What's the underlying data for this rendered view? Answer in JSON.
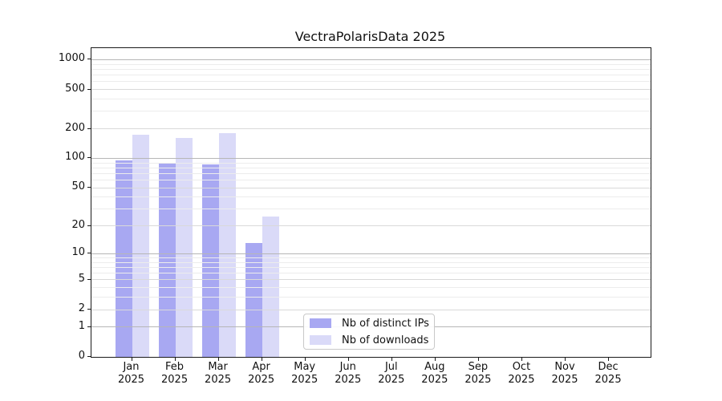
{
  "chart_data": {
    "type": "bar",
    "title": "VectraPolarisData 2025",
    "categories": [
      "Jan",
      "Feb",
      "Mar",
      "Apr",
      "May",
      "Jun",
      "Jul",
      "Aug",
      "Sep",
      "Oct",
      "Nov",
      "Dec"
    ],
    "year_suffix": "2025",
    "series": [
      {
        "name": "Nb of distinct IPs",
        "color": "#a8a8f2",
        "values": [
          95,
          90,
          86,
          13,
          0,
          0,
          0,
          0,
          0,
          0,
          0,
          0
        ]
      },
      {
        "name": "Nb of downloads",
        "color": "#dadaf8",
        "values": [
          173,
          160,
          182,
          25,
          0,
          0,
          0,
          0,
          0,
          0,
          0,
          0
        ]
      }
    ],
    "yscale": "log10(v+1)",
    "yticks": [
      0,
      1,
      2,
      5,
      10,
      20,
      50,
      100,
      200,
      500,
      1000
    ],
    "ylim": [
      0,
      1310
    ],
    "xlabel": "",
    "ylabel": "",
    "grid": true,
    "grid_over_bars": true,
    "legend_position": "lower center-left"
  },
  "colors": {
    "axis": "#1a1a1a",
    "grid_decade": "#b6b6b6",
    "grid_major": "#d9d9d9",
    "grid_minor": "#ececec",
    "background": "#ffffff"
  }
}
